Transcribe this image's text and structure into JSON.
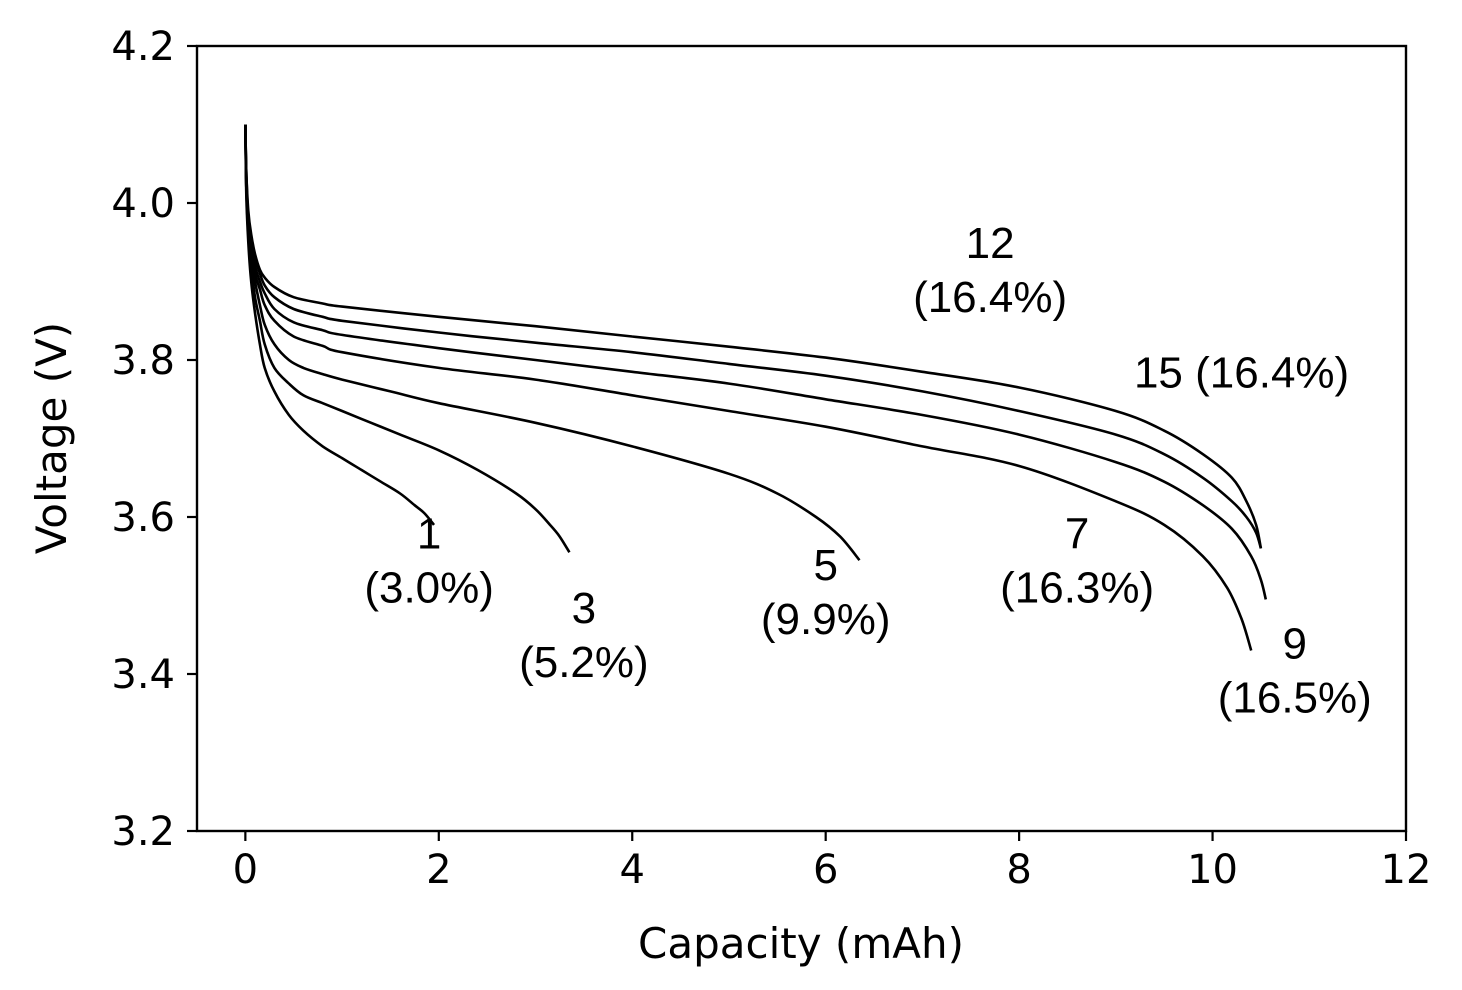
{
  "chart_data": {
    "type": "line",
    "title": "",
    "xlabel": "Capacity (mAh)",
    "ylabel": "Voltage (V)",
    "xlim": [
      -0.5,
      12
    ],
    "ylim": [
      3.2,
      4.2
    ],
    "xticks": [
      0,
      2,
      4,
      6,
      8,
      10,
      12
    ],
    "yticks": [
      3.2,
      3.4,
      3.6,
      3.8,
      4.0,
      4.2
    ],
    "xtick_labels": [
      "0",
      "2",
      "4",
      "6",
      "8",
      "10",
      "12"
    ],
    "ytick_labels": [
      "3.2",
      "3.4",
      "3.6",
      "3.8",
      "4.0",
      "4.2"
    ],
    "grid": false,
    "series": [
      {
        "name": "1 (3.0%)",
        "x": [
          0,
          0.01,
          0.03,
          0.06,
          0.1,
          0.15,
          0.2,
          0.3,
          0.45,
          0.6,
          0.8,
          1.0,
          1.2,
          1.4,
          1.6,
          1.75,
          1.85,
          1.95
        ],
        "y": [
          4.1,
          4.01,
          3.95,
          3.9,
          3.86,
          3.82,
          3.79,
          3.76,
          3.73,
          3.71,
          3.69,
          3.675,
          3.66,
          3.645,
          3.63,
          3.615,
          3.605,
          3.59
        ]
      },
      {
        "name": "3 (5.2%)",
        "x": [
          0,
          0.01,
          0.03,
          0.06,
          0.1,
          0.15,
          0.2,
          0.3,
          0.45,
          0.6,
          0.8,
          1.0,
          1.3,
          1.6,
          2.0,
          2.4,
          2.8,
          3.0,
          3.15,
          3.25,
          3.35
        ],
        "y": [
          4.1,
          4.02,
          3.96,
          3.92,
          3.88,
          3.85,
          3.82,
          3.79,
          3.77,
          3.755,
          3.745,
          3.735,
          3.72,
          3.705,
          3.685,
          3.66,
          3.63,
          3.61,
          3.59,
          3.575,
          3.555
        ]
      },
      {
        "name": "5 (9.9%)",
        "x": [
          0,
          0.01,
          0.03,
          0.06,
          0.1,
          0.15,
          0.2,
          0.3,
          0.45,
          0.6,
          0.8,
          1.0,
          1.5,
          2.0,
          3.0,
          4.0,
          5.0,
          5.5,
          5.9,
          6.15,
          6.35
        ],
        "y": [
          4.1,
          4.02,
          3.97,
          3.93,
          3.9,
          3.87,
          3.845,
          3.82,
          3.8,
          3.79,
          3.782,
          3.775,
          3.76,
          3.745,
          3.72,
          3.69,
          3.655,
          3.63,
          3.6,
          3.575,
          3.545
        ]
      },
      {
        "name": "7 (16.3%)",
        "x": [
          0,
          0.01,
          0.03,
          0.06,
          0.1,
          0.15,
          0.2,
          0.3,
          0.5,
          0.8,
          1.0,
          2.0,
          3.0,
          4.0,
          5.0,
          6.0,
          7.0,
          8.0,
          9.0,
          9.5,
          9.9,
          10.15,
          10.3,
          10.4
        ],
        "y": [
          4.1,
          4.03,
          3.97,
          3.94,
          3.91,
          3.89,
          3.87,
          3.85,
          3.83,
          3.818,
          3.81,
          3.79,
          3.775,
          3.755,
          3.735,
          3.715,
          3.69,
          3.665,
          3.62,
          3.59,
          3.55,
          3.51,
          3.47,
          3.43
        ]
      },
      {
        "name": "9 (16.5%)",
        "x": [
          0,
          0.01,
          0.03,
          0.06,
          0.1,
          0.15,
          0.2,
          0.3,
          0.5,
          0.8,
          1.0,
          2.0,
          3.0,
          4.0,
          5.0,
          6.0,
          7.0,
          8.0,
          9.0,
          9.5,
          9.9,
          10.2,
          10.4,
          10.5,
          10.55
        ],
        "y": [
          4.1,
          4.03,
          3.98,
          3.95,
          3.92,
          3.9,
          3.885,
          3.865,
          3.848,
          3.838,
          3.832,
          3.815,
          3.8,
          3.785,
          3.77,
          3.75,
          3.73,
          3.705,
          3.67,
          3.645,
          3.615,
          3.585,
          3.55,
          3.52,
          3.495
        ]
      },
      {
        "name": "12 (16.4%)",
        "x": [
          0,
          0.01,
          0.03,
          0.06,
          0.1,
          0.15,
          0.2,
          0.3,
          0.5,
          0.8,
          1.0,
          2.0,
          3.0,
          4.0,
          5.0,
          6.0,
          7.0,
          8.0,
          9.0,
          9.5,
          9.9,
          10.2,
          10.35,
          10.45,
          10.5
        ],
        "y": [
          4.1,
          4.04,
          3.98,
          3.955,
          3.93,
          3.91,
          3.895,
          3.88,
          3.865,
          3.855,
          3.85,
          3.835,
          3.822,
          3.81,
          3.795,
          3.78,
          3.76,
          3.735,
          3.705,
          3.68,
          3.65,
          3.62,
          3.6,
          3.58,
          3.56
        ]
      },
      {
        "name": "15 (16.4%)",
        "x": [
          0,
          0.01,
          0.03,
          0.06,
          0.1,
          0.15,
          0.2,
          0.3,
          0.5,
          0.8,
          1.0,
          2.0,
          3.0,
          4.0,
          5.0,
          6.0,
          7.0,
          8.0,
          9.0,
          9.5,
          9.9,
          10.2,
          10.35,
          10.45,
          10.5
        ],
        "y": [
          4.1,
          4.04,
          3.99,
          3.96,
          3.935,
          3.915,
          3.905,
          3.893,
          3.88,
          3.872,
          3.868,
          3.855,
          3.843,
          3.83,
          3.817,
          3.803,
          3.785,
          3.765,
          3.735,
          3.71,
          3.68,
          3.65,
          3.62,
          3.59,
          3.56
        ]
      }
    ],
    "annotations": [
      {
        "label": "1",
        "sub": "(3.0%)",
        "x": 1.9,
        "y": 3.56
      },
      {
        "label": "3",
        "sub": "(5.2%)",
        "x": 3.5,
        "y": 3.465
      },
      {
        "label": "5",
        "sub": "(9.9%)",
        "x": 6.0,
        "y": 3.52
      },
      {
        "label": "7",
        "sub": "(16.3%)",
        "x": 8.6,
        "y": 3.56
      },
      {
        "label": "9",
        "sub": "(16.5%)",
        "x": 10.85,
        "y": 3.42
      },
      {
        "label": "12",
        "sub": "(16.4%)",
        "x": 7.7,
        "y": 3.93
      },
      {
        "label": "15 (16.4%)",
        "sub": "",
        "x": 10.3,
        "y": 3.765
      }
    ]
  }
}
